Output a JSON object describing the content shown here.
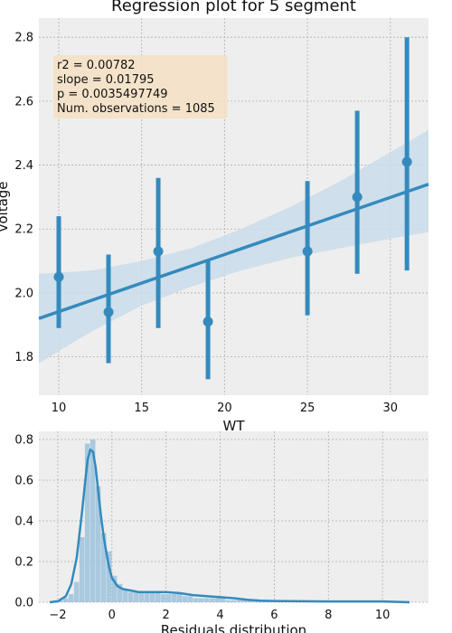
{
  "chart_data": [
    {
      "type": "scatter",
      "title": "Regression plot for 5 segment",
      "xlabel": "WT",
      "ylabel": "voltage",
      "xlim": [
        8.8,
        32.3
      ],
      "ylim": [
        1.68,
        2.86
      ],
      "xticks": [
        10,
        15,
        20,
        25,
        30
      ],
      "yticks": [
        1.8,
        2.0,
        2.2,
        2.4,
        2.6,
        2.8
      ],
      "grid": true,
      "points": [
        {
          "x": 10,
          "y": 2.05,
          "low": 1.89,
          "high": 2.24
        },
        {
          "x": 13,
          "y": 1.94,
          "low": 1.78,
          "high": 2.12
        },
        {
          "x": 16,
          "y": 2.13,
          "low": 1.89,
          "high": 2.36
        },
        {
          "x": 19,
          "y": 1.91,
          "low": 1.73,
          "high": 2.1
        },
        {
          "x": 25,
          "y": 2.13,
          "low": 1.93,
          "high": 2.35
        },
        {
          "x": 28,
          "y": 2.3,
          "low": 2.06,
          "high": 2.57
        },
        {
          "x": 31,
          "y": 2.41,
          "low": 2.07,
          "high": 2.8
        }
      ],
      "regression": {
        "x": [
          8.8,
          32.3
        ],
        "y": [
          1.92,
          2.34
        ]
      },
      "confidence_band": {
        "x": [
          8.8,
          12,
          15,
          18,
          21,
          24,
          27,
          30,
          32.3
        ],
        "upper": [
          2.06,
          2.07,
          2.1,
          2.14,
          2.2,
          2.27,
          2.35,
          2.44,
          2.51
        ],
        "lower": [
          1.78,
          1.88,
          1.96,
          2.02,
          2.07,
          2.11,
          2.14,
          2.17,
          2.19
        ]
      },
      "stats_box": {
        "line1": "r2 = 0.00782",
        "line2": "slope = 0.01795",
        "line3": "p = 0.0035497749",
        "line4": "Num. observations = 1085"
      },
      "colors": {
        "primary": "#348ABD",
        "band": "#C9DCEA",
        "background": "#EEEEEE",
        "grid": "#B0B0B0",
        "stats_box": "#F5E1C3"
      }
    },
    {
      "type": "histogram",
      "xlabel": "Residuals distribution",
      "xlim": [
        -2.7,
        11.7
      ],
      "ylim": [
        0,
        0.84
      ],
      "xticks": [
        -2,
        0,
        2,
        4,
        6,
        8,
        10
      ],
      "yticks": [
        0.0,
        0.2,
        0.4,
        0.6,
        0.8
      ],
      "grid": true,
      "bins": {
        "start": -2.0,
        "width": 0.2,
        "heights": [
          0.01,
          0.02,
          0.04,
          0.1,
          0.32,
          0.78,
          0.8,
          0.57,
          0.34,
          0.25,
          0.13,
          0.09,
          0.06,
          0.05,
          0.05,
          0.05,
          0.05,
          0.05,
          0.05,
          0.04,
          0.04,
          0.04,
          0.04,
          0.03,
          0.03,
          0.02,
          0.02,
          0.02,
          0.02,
          0.02,
          0.02,
          0.01,
          0.01,
          0.01,
          0.01,
          0.01,
          0.01,
          0.01,
          0.01,
          0.01,
          0.01,
          0.005,
          0.005,
          0.005,
          0.005,
          0.005,
          0.005,
          0.005,
          0.005,
          0.005,
          0.005,
          0.005,
          0.005,
          0.005,
          0.005,
          0.005,
          0.005,
          0.005,
          0.005,
          0.005,
          0.005,
          0.005,
          0.005,
          0.005,
          0.005
        ]
      },
      "kde": {
        "x": [
          -2.3,
          -2.0,
          -1.7,
          -1.5,
          -1.3,
          -1.1,
          -1.0,
          -0.9,
          -0.8,
          -0.7,
          -0.6,
          -0.5,
          -0.4,
          -0.3,
          -0.2,
          -0.1,
          0.0,
          0.2,
          0.4,
          0.6,
          0.8,
          1.0,
          1.5,
          2.0,
          2.5,
          3.0,
          3.5,
          4.0,
          4.5,
          5.0,
          5.5,
          6.0,
          7.0,
          8.0,
          9.0,
          10.0,
          11.0
        ],
        "y": [
          0.0,
          0.005,
          0.03,
          0.09,
          0.22,
          0.45,
          0.58,
          0.7,
          0.75,
          0.74,
          0.66,
          0.54,
          0.42,
          0.32,
          0.24,
          0.17,
          0.12,
          0.08,
          0.065,
          0.06,
          0.055,
          0.05,
          0.05,
          0.05,
          0.045,
          0.035,
          0.03,
          0.025,
          0.02,
          0.012,
          0.008,
          0.006,
          0.005,
          0.004,
          0.004,
          0.004,
          0.0
        ]
      },
      "colors": {
        "bars": "#9CC2DC",
        "kde": "#348ABD",
        "background": "#EEEEEE",
        "grid": "#B0B0B0"
      }
    }
  ]
}
